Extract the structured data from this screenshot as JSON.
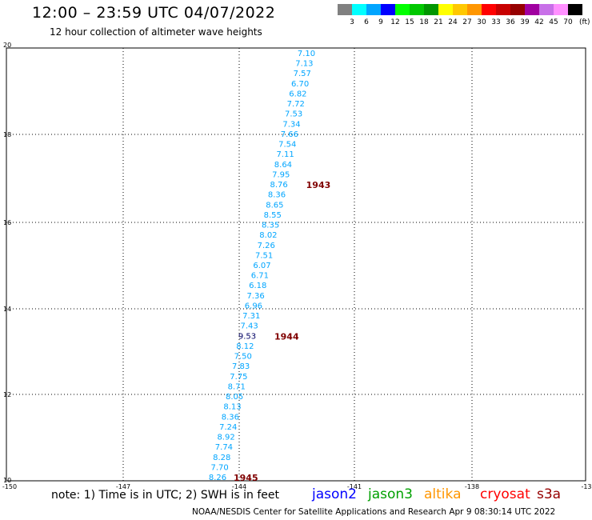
{
  "title": "12:00 – 23:59 UTC 04/07/2022",
  "subtitle": "12 hour collection of altimeter wave heights",
  "legend": {
    "unit": "(ft)",
    "colors": [
      "#808080",
      "#00ffff",
      "#00a5ff",
      "#0000ff",
      "#00ff00",
      "#00c800",
      "#009600",
      "#ffff00",
      "#ffc800",
      "#ff9600",
      "#ff0000",
      "#c80000",
      "#960000",
      "#a000a0",
      "#c870e8",
      "#ff90ff",
      "#000000"
    ],
    "labels": [
      "3",
      "6",
      "9",
      "12",
      "15",
      "18",
      "21",
      "24",
      "27",
      "30",
      "33",
      "36",
      "39",
      "42",
      "45",
      "70"
    ]
  },
  "axes": {
    "lat_ticks": [
      "20",
      "18",
      "16",
      "14",
      "12",
      "10"
    ],
    "lon_ticks": [
      "-150",
      "-147",
      "-144",
      "-141",
      "-138",
      "-13"
    ]
  },
  "track": {
    "color": "#00a5ff",
    "heights": [
      "7.10",
      "7.13",
      "7.57",
      "6.70",
      "6.82",
      "7.72",
      "7.53",
      "7.34",
      "7.66",
      "7.54",
      "7.11",
      "8.64",
      "7.95",
      "8.76",
      "8.36",
      "8.65",
      "8.55",
      "8.35",
      "8.02",
      "7.26",
      "7.51",
      "6.07",
      "6.71",
      "6.18",
      "7.36",
      "6.96",
      "7.31",
      "7.43",
      "9.53",
      "8.12",
      "7.50",
      "7.83",
      "7.75",
      "8.71",
      "8.05",
      "8.13",
      "8.36",
      "7.24",
      "8.92",
      "7.74",
      "8.28",
      "7.70",
      "8.26"
    ],
    "dark_index": 28,
    "time_labels": [
      {
        "text": "1943",
        "after_index": 13
      },
      {
        "text": "1944",
        "after_index": 28
      },
      {
        "text": "1945",
        "after_index": 42
      }
    ]
  },
  "note": "note: 1) Time is in UTC; 2) SWH is in feet",
  "satellites": [
    {
      "name": "jason2",
      "color": "#0000ff"
    },
    {
      "name": "jason3",
      "color": "#00a000"
    },
    {
      "name": "altika",
      "color": "#ff9600"
    },
    {
      "name": "cryosat",
      "color": "#ff0000"
    },
    {
      "name": "s3a",
      "color": "#960000"
    }
  ],
  "credit": "NOAA/NESDIS Center for Satellite Applications and Research   Apr  9 08:30:14 UTC 2022"
}
